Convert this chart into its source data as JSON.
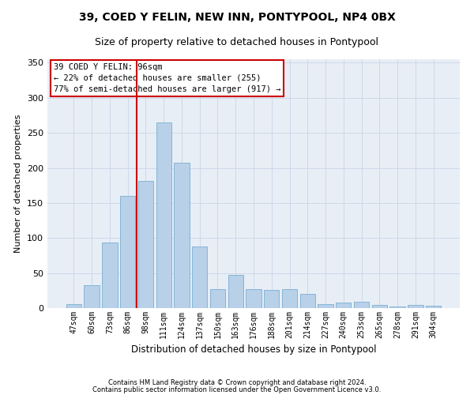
{
  "title1": "39, COED Y FELIN, NEW INN, PONTYPOOL, NP4 0BX",
  "title2": "Size of property relative to detached houses in Pontypool",
  "xlabel": "Distribution of detached houses by size in Pontypool",
  "ylabel": "Number of detached properties",
  "categories": [
    "47sqm",
    "60sqm",
    "73sqm",
    "86sqm",
    "98sqm",
    "111sqm",
    "124sqm",
    "137sqm",
    "150sqm",
    "163sqm",
    "176sqm",
    "188sqm",
    "201sqm",
    "214sqm",
    "227sqm",
    "240sqm",
    "253sqm",
    "265sqm",
    "278sqm",
    "291sqm",
    "304sqm"
  ],
  "values": [
    6,
    33,
    94,
    160,
    182,
    265,
    207,
    88,
    27,
    47,
    27,
    26,
    27,
    20,
    6,
    8,
    9,
    4,
    2,
    4,
    3
  ],
  "bar_color": "#b8d0e8",
  "bar_edgecolor": "#7aafd4",
  "vline_color": "#cc0000",
  "vline_pos": 3.5,
  "annotation_text": "39 COED Y FELIN: 96sqm\n← 22% of detached houses are smaller (255)\n77% of semi-detached houses are larger (917) →",
  "annotation_box_facecolor": "#ffffff",
  "annotation_box_edgecolor": "#cc0000",
  "grid_color": "#cdd8ea",
  "background_color": "#e8eef5",
  "footer1": "Contains HM Land Registry data © Crown copyright and database right 2024.",
  "footer2": "Contains public sector information licensed under the Open Government Licence v3.0.",
  "ylim": [
    0,
    355
  ],
  "yticks": [
    0,
    50,
    100,
    150,
    200,
    250,
    300,
    350
  ],
  "title1_fontsize": 10,
  "title2_fontsize": 9,
  "xlabel_fontsize": 8.5,
  "ylabel_fontsize": 8,
  "annotation_fontsize": 7.5,
  "tick_fontsize": 7,
  "footer_fontsize": 6
}
